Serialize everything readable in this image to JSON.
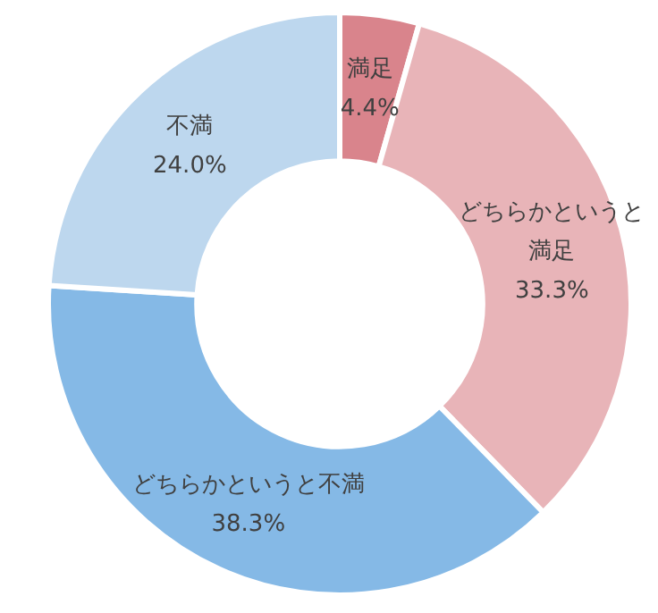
{
  "chart_data": {
    "type": "donut",
    "categories": [
      "満足",
      "どちらかというと満足",
      "どちらかというと不満",
      "不満"
    ],
    "values": [
      4.4,
      33.3,
      38.3,
      24.0
    ],
    "value_labels": [
      "4.4%",
      "33.3%",
      "38.3%",
      "24.0%"
    ],
    "colors": [
      "#d9848c",
      "#e8b4b8",
      "#85b9e6",
      "#bdd7ee"
    ]
  }
}
